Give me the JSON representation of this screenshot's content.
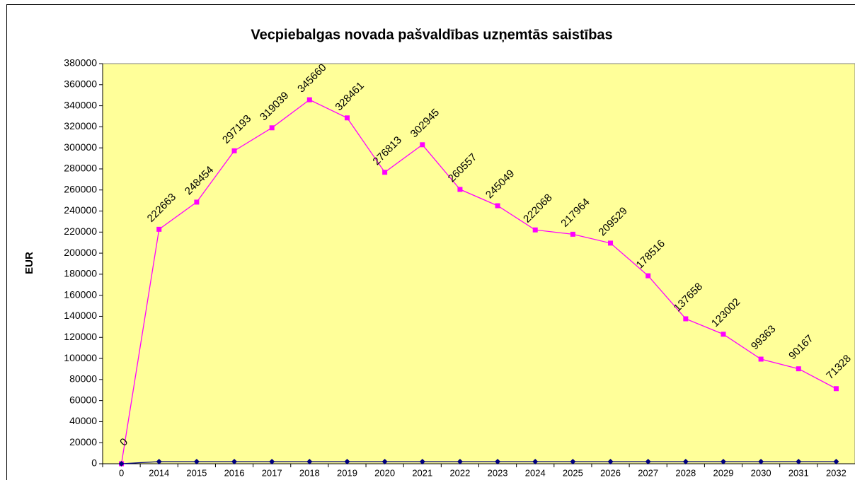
{
  "chart_data": {
    "type": "line",
    "title": "Vecpiebalgas novada pašvaldības uzņemtās saistības",
    "y_label": "EUR",
    "categories": [
      "0",
      "2014",
      "2015",
      "2016",
      "2017",
      "2018",
      "2019",
      "2020",
      "2021",
      "2022",
      "2023",
      "2024",
      "2025",
      "2026",
      "2027",
      "2028",
      "2029",
      "2030",
      "2031",
      "2032"
    ],
    "series": [
      {
        "color": "#ff00ff",
        "marker": "square",
        "data_labels": true,
        "values": [
          0,
          222663,
          248454,
          297193,
          319039,
          345660,
          328461,
          276813,
          302945,
          260557,
          245049,
          222068,
          217964,
          209529,
          178516,
          137658,
          123002,
          99363,
          90167,
          71328
        ]
      },
      {
        "color": "#000080",
        "marker": "diamond",
        "data_labels": false,
        "values": [
          0,
          2000,
          2000,
          2000,
          2000,
          2000,
          2000,
          2000,
          2000,
          2000,
          2000,
          2000,
          2000,
          2000,
          2000,
          2000,
          2000,
          2000,
          2000,
          2000
        ]
      }
    ],
    "ylim": [
      0,
      380000
    ],
    "yticks": [
      0,
      20000,
      40000,
      60000,
      80000,
      100000,
      120000,
      140000,
      160000,
      180000,
      200000,
      220000,
      240000,
      260000,
      280000,
      300000,
      320000,
      340000,
      360000,
      380000
    ],
    "plot_background": "#ffff99"
  }
}
